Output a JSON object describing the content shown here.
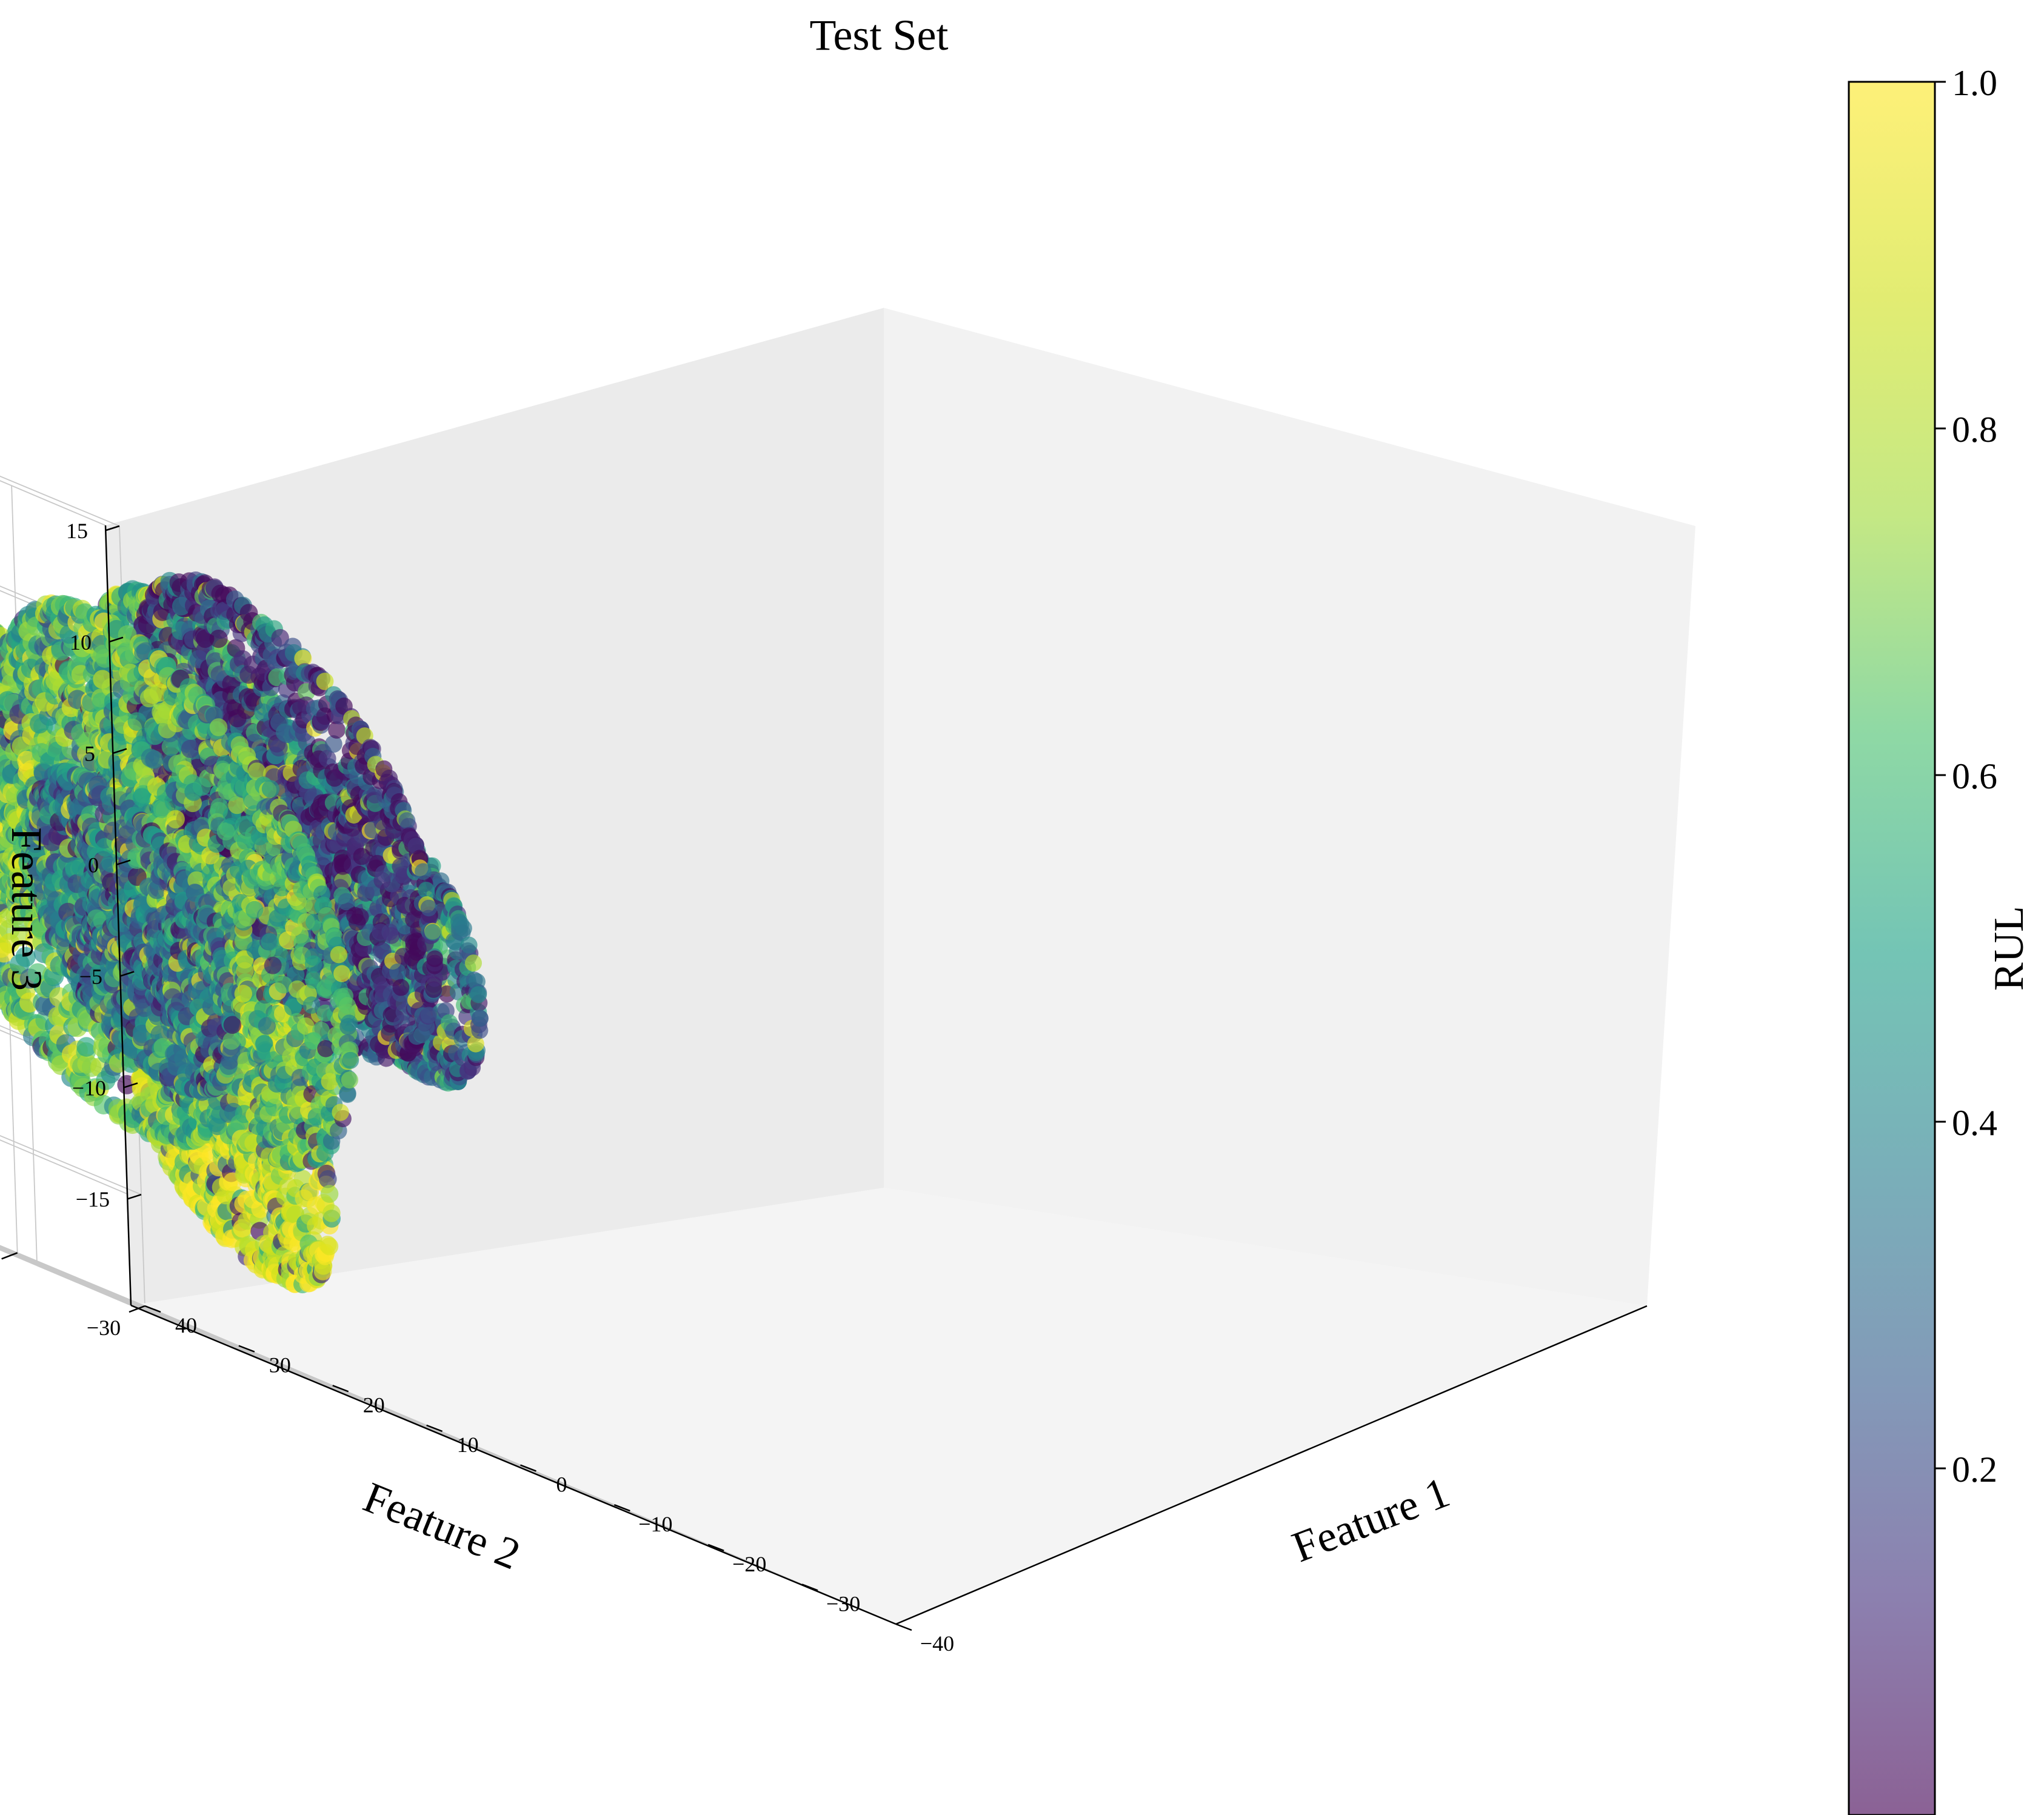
{
  "chart_data": {
    "type": "scatter",
    "projection": "3d",
    "title": "Test Set",
    "xlabel": "Feature 1",
    "ylabel": "Feature 2",
    "zlabel": "Feature 3",
    "xlim": [
      -40,
      40
    ],
    "ylim": [
      -30,
      30
    ],
    "zlim": [
      -20,
      15
    ],
    "x_ticks": [
      -40,
      -30,
      -20,
      -10,
      0,
      10,
      20,
      30,
      40
    ],
    "y_ticks": [
      -30,
      -20,
      -10,
      0,
      10,
      20,
      30
    ],
    "z_ticks": [
      -15,
      -10,
      -5,
      0,
      5,
      10,
      15
    ],
    "x_tick_labels": [
      "−40",
      "−30",
      "−20",
      "−10",
      "0",
      "10",
      "20",
      "30",
      "40"
    ],
    "y_tick_labels": [
      "−30",
      "−20",
      "−10",
      "0",
      "10",
      "20",
      "30"
    ],
    "z_tick_labels": [
      "−15",
      "−10",
      "−5",
      "0",
      "5",
      "10",
      "15"
    ],
    "grid": true,
    "colorbar": {
      "label": "RUL",
      "range": [
        0,
        1
      ],
      "ticks": [
        0.2,
        0.4,
        0.6,
        0.8,
        1.0
      ],
      "tick_labels": [
        "0.2",
        "0.4",
        "0.6",
        "0.8",
        "1.0"
      ],
      "colormap": "viridis",
      "alpha": 0.6
    },
    "clusters": [
      {
        "x": 5,
        "y": -24,
        "z": 2,
        "r": 8,
        "rul": 0.3
      },
      {
        "x": 15,
        "y": -20,
        "z": -5,
        "r": 7,
        "rul": 0.85
      },
      {
        "x": 3,
        "y": -10,
        "z": 5,
        "r": 10,
        "rul": 0.6
      },
      {
        "x": 0,
        "y": -8,
        "z": -10,
        "r": 8,
        "rul": 0.9
      },
      {
        "x": 20,
        "y": 2,
        "z": -14,
        "r": 5,
        "rul": 0.55
      },
      {
        "x": -15,
        "y": -2,
        "z": 5,
        "r": 12,
        "rul": 0.1
      },
      {
        "x": -5,
        "y": 8,
        "z": -2,
        "r": 13,
        "rul": 0.65
      },
      {
        "x": -22,
        "y": 12,
        "z": 0,
        "r": 14,
        "rul": 0.6
      },
      {
        "x": -28,
        "y": 20,
        "z": -3,
        "r": 8,
        "rul": 0.3
      }
    ]
  }
}
